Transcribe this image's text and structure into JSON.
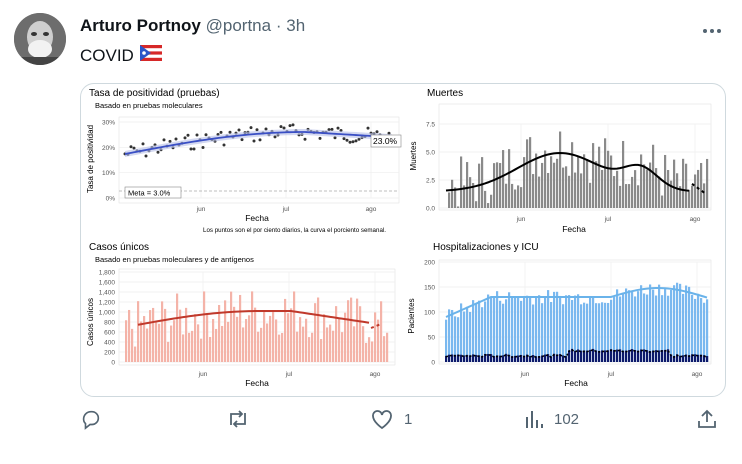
{
  "tweet": {
    "name": "Arturo Portnoy",
    "handle": "@portna",
    "separator": "·",
    "time": "3h",
    "text": "COVID",
    "flag_icon": "puerto-rico-flag-icon",
    "more_icon": "more-icon"
  },
  "actions": {
    "reply_icon": "reply-icon",
    "retweet_icon": "retweet-icon",
    "like_icon": "heart-icon",
    "like_count": "1",
    "views_icon": "views-icon",
    "views_count": "102",
    "share_icon": "share-icon"
  },
  "colors": {
    "positivity_line": "#3a4fc4",
    "cases_bar": "#f4b3a8",
    "cases_line": "#c0392b",
    "hosp_bar": "#7ab8ef",
    "icu_bar": "#0d1a6b",
    "deaths_bar": "#8a8a8a"
  },
  "charts": {
    "positivity": {
      "title": "Tasa de positividad (pruebas)",
      "subtitle": "Basado en pruebas moleculares",
      "ylabel": "Tasa de positividad",
      "xlabel": "Fecha",
      "yticks": [
        "30%",
        "20%",
        "10%",
        "0%"
      ],
      "xticks": [
        "jun",
        "jul",
        "ago"
      ],
      "last_value": "23.0%",
      "goal": "Meta = 3.0%",
      "caption": "Los puntos son el por ciento diarios, la curva el porciento semanal."
    },
    "deaths": {
      "title": "Muertes",
      "ylabel": "Muertes",
      "xlabel": "Fecha",
      "yticks": [
        "7.5",
        "5.0",
        "2.5",
        "0.0"
      ],
      "xticks": [
        "jun",
        "jul",
        "ago"
      ]
    },
    "cases": {
      "title": "Casos únicos",
      "subtitle": "Basado en pruebas moleculares y de antígenos",
      "ylabel": "Casos únicos",
      "xlabel": "Fecha",
      "yticks": [
        "1,800",
        "1,600",
        "1,400",
        "1,200",
        "1,000",
        "800",
        "600",
        "400",
        "200",
        "0"
      ],
      "xticks": [
        "jun",
        "jul",
        "ago"
      ]
    },
    "hospital": {
      "title": "Hospitalizaciones y ICU",
      "ylabel": "Pacientes",
      "xlabel": "Fecha",
      "yticks": [
        "200",
        "150",
        "100",
        "50",
        "0"
      ],
      "xticks": [
        "jun",
        "jul",
        "ago"
      ]
    }
  }
}
